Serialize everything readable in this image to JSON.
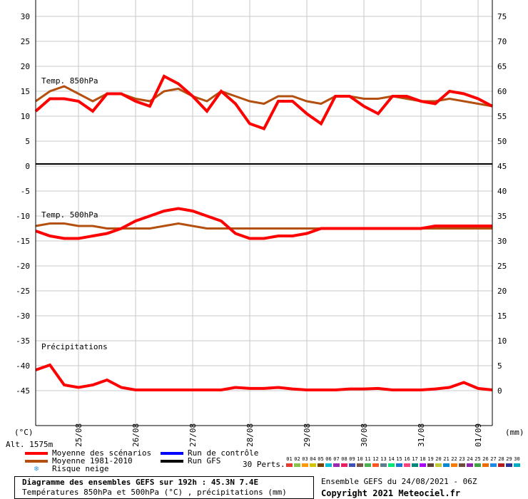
{
  "chart_data": {
    "type": "line",
    "x_dates": [
      "25/08",
      "26/08",
      "27/08",
      "28/08",
      "29/08",
      "30/08",
      "31/08",
      "01/09"
    ],
    "left_unit": "(°C)",
    "right_unit": "(mm)",
    "altitude": "Alt. 1575m",
    "left_ticks": [
      "30",
      "25",
      "20",
      "15",
      "10",
      "5",
      "0",
      "-5",
      "-10",
      "-15",
      "-20",
      "-25",
      "-30",
      "-35",
      "-40",
      "-45"
    ],
    "right_ticks": [
      "75",
      "70",
      "65",
      "60",
      "55",
      "50",
      "45",
      "40",
      "35",
      "30",
      "25",
      "20",
      "15",
      "10",
      "5",
      "0"
    ],
    "panels": [
      {
        "label": "Temp. 850hPa",
        "mean_scenarios": [
          11,
          13.5,
          13.5,
          13,
          11,
          14.5,
          14.5,
          13,
          12,
          18,
          16.5,
          14,
          11,
          15,
          12.5,
          8.5,
          7.5,
          13,
          13,
          10.5,
          8.5,
          14,
          14,
          12,
          10.5,
          14,
          14,
          13,
          12.5,
          15,
          14.5,
          13.5,
          12
        ],
        "climatology": [
          13,
          15,
          16,
          14.5,
          13,
          14.5,
          14.5,
          13.5,
          13,
          15,
          15.5,
          14,
          13,
          15,
          14,
          13,
          12.5,
          14,
          14,
          13,
          12.5,
          14,
          14,
          13.5,
          13.5,
          14,
          13.5,
          13,
          13,
          13.5,
          13,
          12.5,
          12
        ]
      },
      {
        "label": "Temp. 500hPa",
        "mean_scenarios": [
          -13,
          -14,
          -14.5,
          -14.5,
          -14,
          -13.5,
          -12.5,
          -11,
          -10,
          -9,
          -8.5,
          -9,
          -10,
          -11,
          -13.5,
          -14.5,
          -14.5,
          -14,
          -14,
          -13.5,
          -12.5,
          -12.5,
          -12.5,
          -12.5,
          -12.5,
          -12.5,
          -12.5,
          -12.5,
          -12,
          -12,
          -12,
          -12,
          -12
        ],
        "climatology": [
          -12,
          -11.5,
          -11.5,
          -12,
          -12,
          -12.5,
          -12.5,
          -12.5,
          -12.5,
          -12,
          -11.5,
          -12,
          -12.5,
          -12.5,
          -12.5,
          -12.5,
          -12.5,
          -12.5,
          -12.5,
          -12.5,
          -12.5,
          -12.5,
          -12.5,
          -12.5,
          -12.5,
          -12.5,
          -12.5,
          -12.5,
          -12.5,
          -12.5,
          -12.5,
          -12.5,
          -12.5
        ]
      },
      {
        "label": "Précipitations",
        "mean_scenarios": [
          4,
          5,
          1,
          0.5,
          1,
          2,
          0.5,
          0,
          0,
          0,
          0,
          0,
          0,
          0,
          0.5,
          0.3,
          0.3,
          0.5,
          0.2,
          0,
          0,
          0,
          0.2,
          0.2,
          0.3,
          0,
          0,
          0,
          0.2,
          0.5,
          1.5,
          0.3,
          0
        ],
        "climatology": []
      }
    ],
    "grid": true
  },
  "legend": {
    "mean": "Moyenne des scénarios",
    "clim": "Moyenne 1981-2010",
    "snow": "Risque neige",
    "control": "Run de contrôle",
    "gfs": "Run GFS",
    "perts_label": "30 Perts.",
    "perts": [
      "01",
      "02",
      "03",
      "04",
      "05",
      "06",
      "07",
      "08",
      "09",
      "10",
      "11",
      "12",
      "13",
      "14",
      "15",
      "16",
      "17",
      "18",
      "19",
      "20",
      "21",
      "22",
      "23",
      "24",
      "25",
      "26",
      "27",
      "28",
      "29",
      "30"
    ],
    "colors": {
      "mean": "#ff0000",
      "clim": "#b4500f",
      "control": "#0000ff",
      "gfs": "#000000"
    }
  },
  "footer": {
    "title": "Diagramme des ensembles GEFS sur 192h : 45.3N 7.4E",
    "subtitle": "Températures 850hPa et 500hPa (°C) , précipitations (mm)",
    "ensemble": "Ensemble GEFS du 24/08/2021 - 06Z",
    "copyright": "Copyright 2021 Meteociel.fr"
  }
}
